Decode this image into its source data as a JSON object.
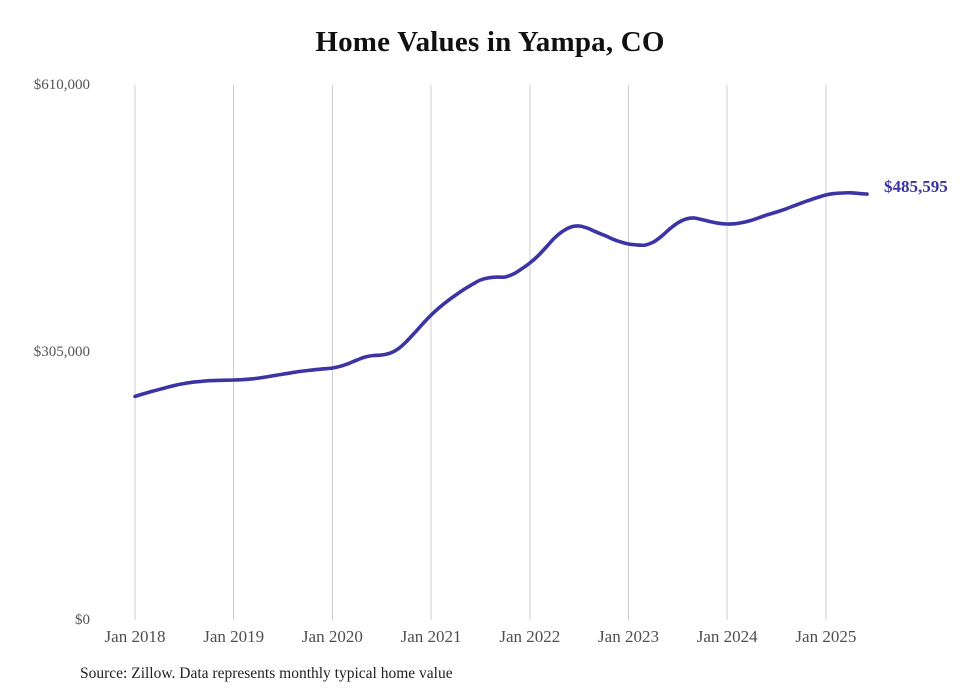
{
  "chart_data": {
    "type": "line",
    "title": "Home Values in Yampa, CO",
    "source_note": "Source: Zillow. Data represents monthly typical home value",
    "end_label": "$485,595",
    "latest_value": 485595,
    "x_unit": "month",
    "x_start": "Jan 2018",
    "x_end": "Jun 2025",
    "ylim": [
      0,
      610000
    ],
    "grid": "vertical-only",
    "legend": "none",
    "colors": {
      "line": "#3c34a4",
      "gridline": "#cccccc",
      "title": "#111111",
      "axis_labels": "#4f4f4f"
    },
    "yticks": [
      {
        "label": "$610,000",
        "value": 610000
      },
      {
        "label": "$305,000",
        "value": 305000
      },
      {
        "label": "$0",
        "value": 0
      }
    ],
    "xticks": [
      "Jan 2018",
      "Jan 2019",
      "Jan 2020",
      "Jan 2021",
      "Jan 2022",
      "Jan 2023",
      "Jan 2024",
      "Jan 2025"
    ],
    "series": [
      {
        "name": "Typical home value",
        "color": "#3c34a4",
        "values": [
          255000,
          257800,
          260500,
          263000,
          265500,
          267800,
          269700,
          271100,
          272100,
          272800,
          273200,
          273400,
          273600,
          274000,
          274700,
          275800,
          277200,
          278800,
          280400,
          281900,
          283300,
          284500,
          285500,
          286400,
          287300,
          289400,
          292600,
          296500,
          299900,
          301600,
          302100,
          304200,
          309200,
          317400,
          327500,
          337800,
          347700,
          356200,
          363800,
          370600,
          376900,
          382600,
          387700,
          390100,
          391000,
          391100,
          394500,
          400300,
          407000,
          415200,
          425300,
          435500,
          443200,
          448100,
          449200,
          446800,
          442700,
          438900,
          434600,
          431200,
          428700,
          427700,
          427500,
          430800,
          437500,
          445800,
          452900,
          457200,
          458300,
          456300,
          454000,
          452300,
          451500,
          451900,
          453400,
          455900,
          459100,
          462400,
          465200,
          468300,
          471800,
          475400,
          478700,
          481800,
          484600,
          486200,
          486900,
          487100,
          486400,
          485595
        ]
      }
    ]
  }
}
